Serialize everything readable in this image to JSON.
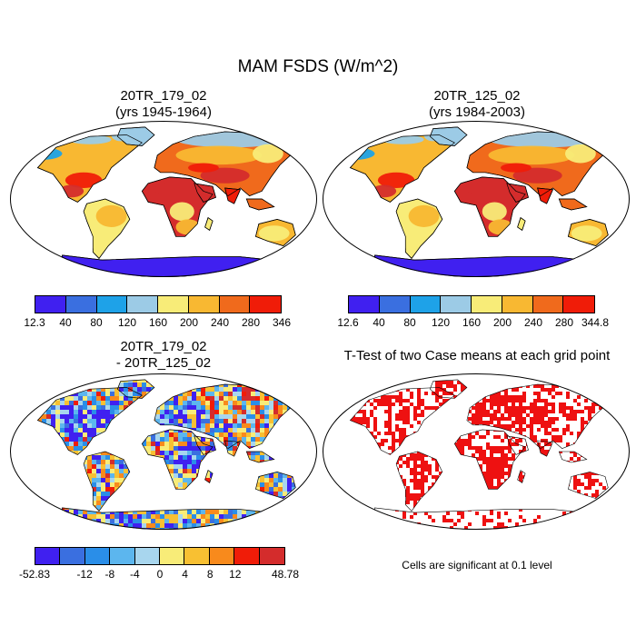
{
  "figure": {
    "title": "MAM FSDS (W/m^2)",
    "panels": [
      {
        "id": "p1",
        "title_line1": "20TR_179_02",
        "title_line2": "(yrs 1945-1964)"
      },
      {
        "id": "p2",
        "title_line1": "20TR_125_02",
        "title_line2": "(yrs 1984-2003)"
      },
      {
        "id": "p3",
        "title_line1": "20TR_179_02",
        "title_line2": "- 20TR_125_02"
      },
      {
        "id": "p4",
        "title_line1": "T-Test of two Case means at each grid point",
        "title_line2": ""
      }
    ],
    "note": "Cells are significant at 0.1 level"
  },
  "colorbars": {
    "cb1": {
      "labels": [
        "12.3",
        "40",
        "80",
        "120",
        "160",
        "200",
        "240",
        "280",
        "346"
      ]
    },
    "cb2": {
      "labels": [
        "12.6",
        "40",
        "80",
        "120",
        "160",
        "200",
        "240",
        "280",
        "344.8"
      ]
    },
    "cb3": {
      "labels": [
        "-52.83",
        "-12",
        "-8",
        "-4",
        "0",
        "4",
        "8",
        "12",
        "48.78"
      ]
    }
  },
  "colors": {
    "seq": [
      "#4020f0",
      "#3a6fe0",
      "#1ea2e8",
      "#9ccbe6",
      "#f8ec78",
      "#f8b832",
      "#f06a1c",
      "#f01c08",
      "#d42c2c"
    ],
    "div": [
      "#4020f0",
      "#3a6fe0",
      "#2a8ee8",
      "#5cb6ee",
      "#a8d6ee",
      "#f8ec78",
      "#f8c032",
      "#f88a1c",
      "#f01c08",
      "#d42c2c"
    ],
    "sig": "#ee1111"
  }
}
